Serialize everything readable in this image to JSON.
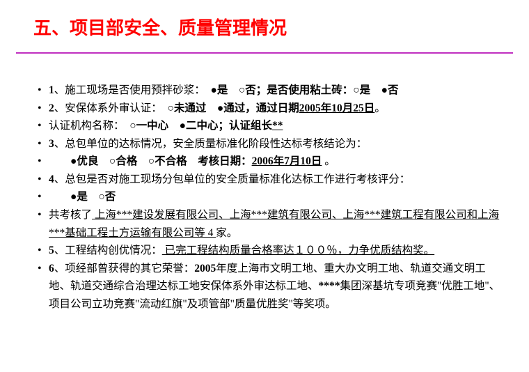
{
  "title": "五、项目部安全、质量管理情况",
  "colors": {
    "title": "#ff0000",
    "divider": "#c030c0",
    "text": "#000000",
    "bg": "#ffffff"
  },
  "fontsize": {
    "title": 26,
    "body": 15.5
  },
  "items": {
    "i1a": "1",
    "i1b": "、施工现场是否使用预拌砂浆：",
    "i1c": "　●是　○否；是否使用粘土砖：○是　●否",
    "i2a": "2",
    "i2b": "、安保体系外审认证：",
    "i2c": "　○未通过　●通过，通过日期",
    "i2d": "2005年10月25日",
    "i2e": "。",
    "i3a": "认证机构名称：",
    "i3b": "　○一中心　●二中心；认证组长",
    "i3c": "**",
    "i4a": "3",
    "i4b": "、总包单位的达标情况，安全质量标准化阶段性达标考核结论为：",
    "i5a": "　　●优良　○合格　○不合格　考核日期：",
    "i5b": "2006年7月10日",
    "i5c": " 。",
    "i6a": "4",
    "i6b": "、总包是否对施工现场分包单位的安全质量标准化达标工作进行考核评分：",
    "i7a": "　　●是　○否",
    "i8a": "共考核了",
    "i8b": " 上海***建设发展有限公司、上海***建筑有限公司、上海***建筑工程有限公司和上海***基础工程土方运输有限公司等 4  ",
    "i8c": "家。",
    "i9a": "5",
    "i9b": "、工程结构创优情况：",
    "i9c": "  已完工程结构质量合格率达１００％，力争优质结构奖。",
    "i10a": "6",
    "i10b": "、项经部曾获得的其它荣誉：",
    "i10c": "2005",
    "i10d": "年度上海市文明工地、重大办文明工地、轨道交通文明工地、轨道交通综合治理达标工地安保体系外审达标工地、",
    "i10e": "****",
    "i10f": "集团深基坑专项竞赛\"优胜工地\"、项目公司立功竞赛\"流动红旗\"及项管部\"质量优胜奖\"等奖项。"
  }
}
